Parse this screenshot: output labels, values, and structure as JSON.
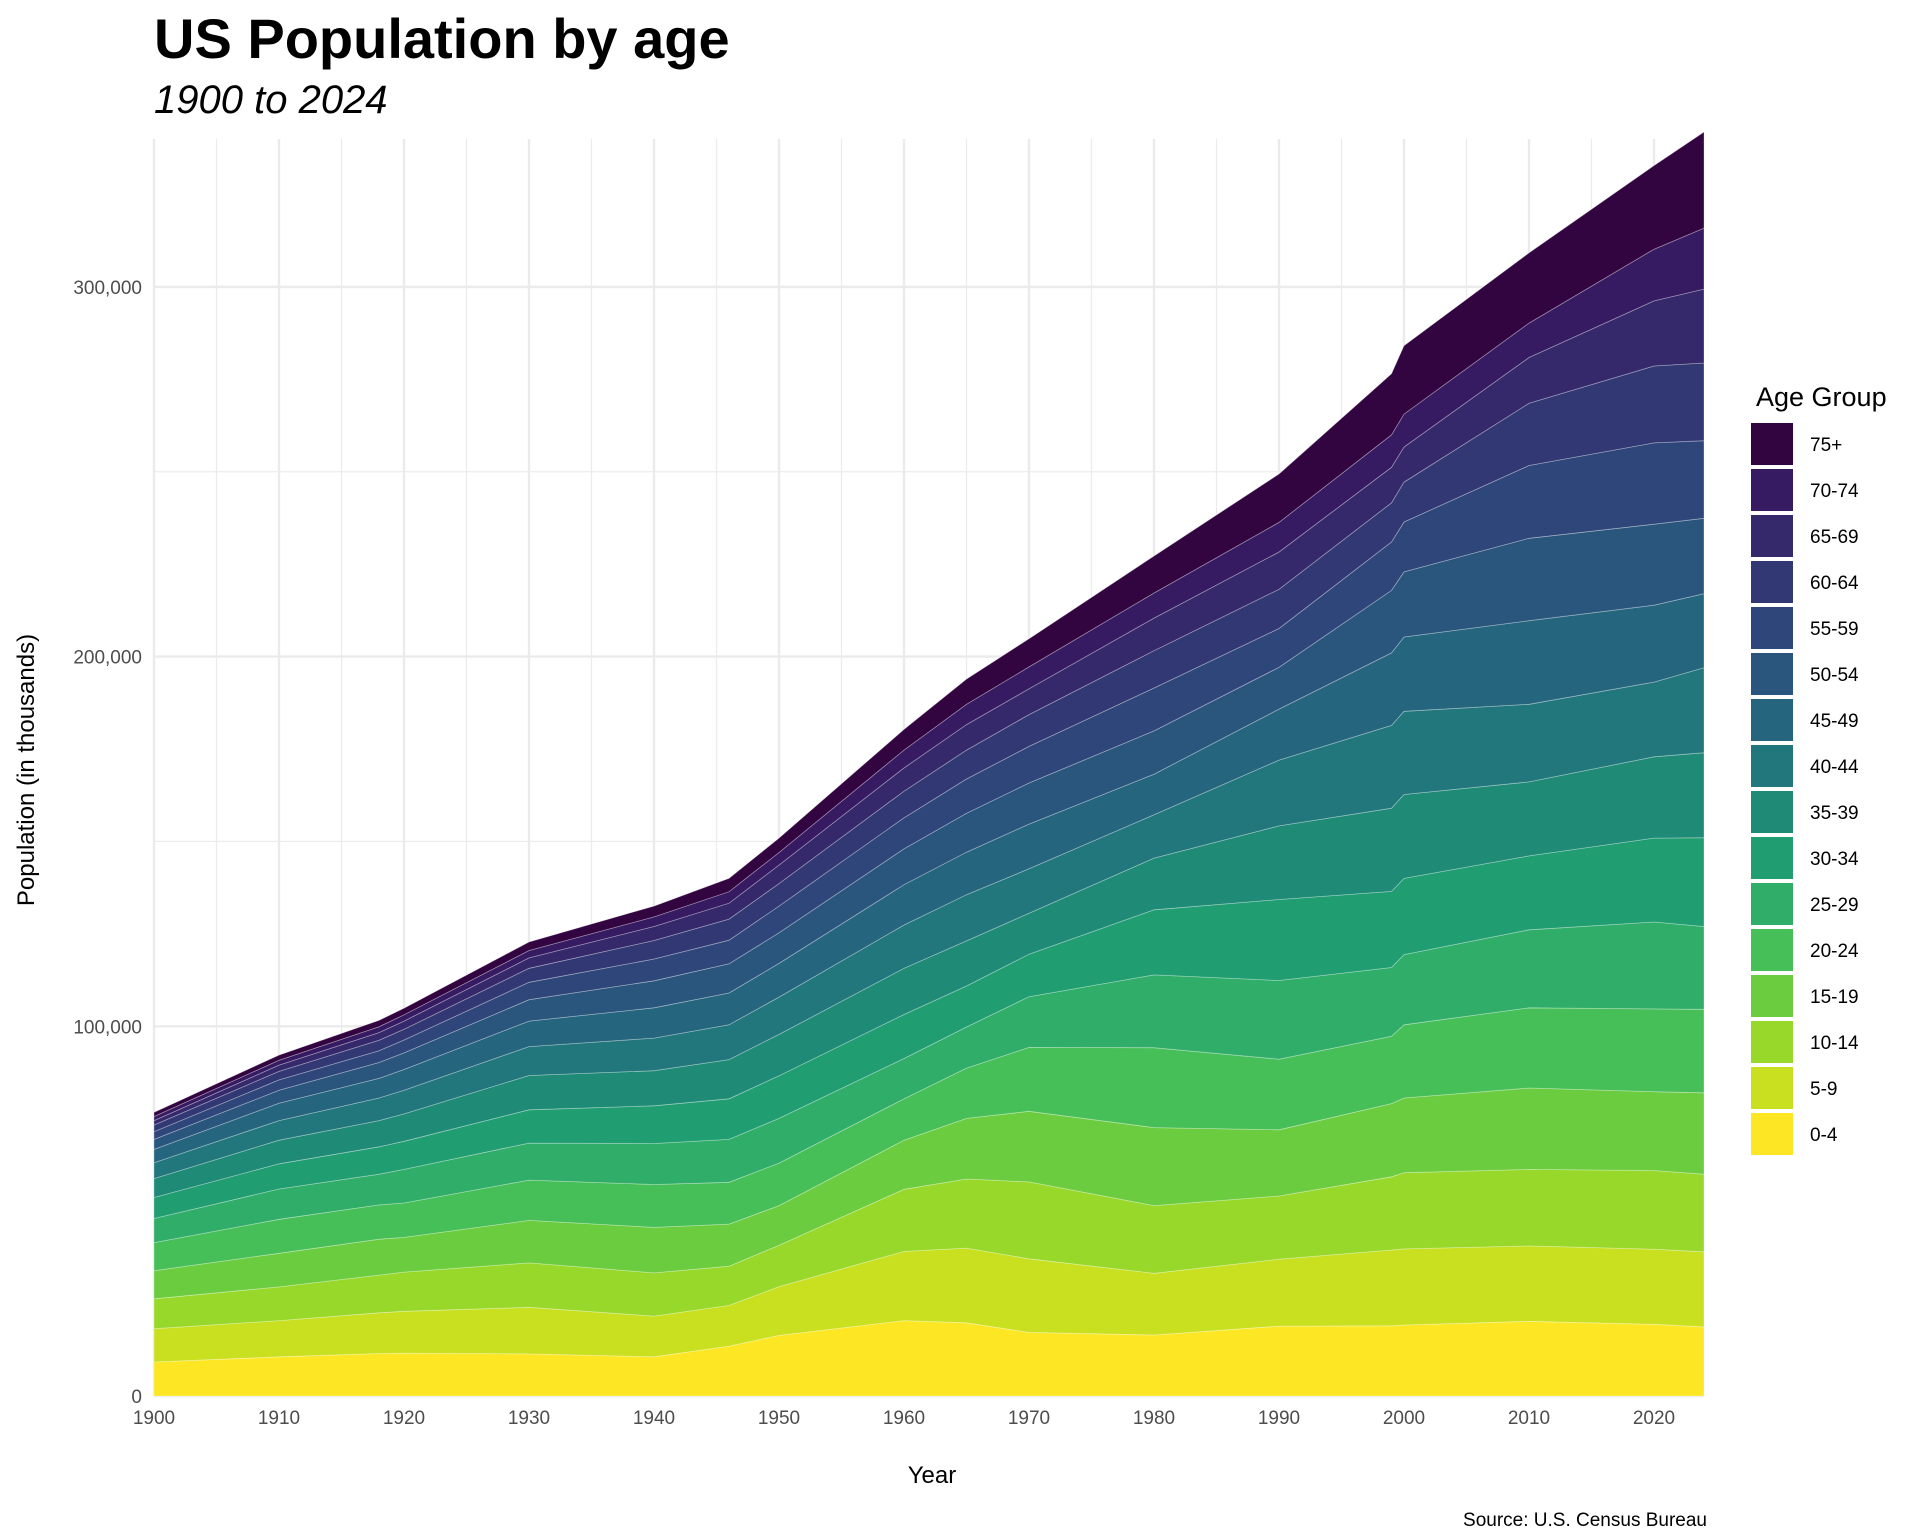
{
  "chart_data": {
    "type": "area",
    "stacked": true,
    "title": "US Population by age",
    "subtitle": "1900 to 2024",
    "xlabel": "Year",
    "ylabel": "Population (in thousands)",
    "caption": "Source: U.S. Census Bureau",
    "xlim": [
      1900,
      2024
    ],
    "ylim": [
      0,
      340000
    ],
    "x_ticks": [
      1900,
      1910,
      1920,
      1930,
      1940,
      1950,
      1960,
      1970,
      1980,
      1990,
      2000,
      2010,
      2020
    ],
    "y_ticks": [
      0,
      100000,
      200000,
      300000
    ],
    "y_tick_labels": [
      "0",
      "100,000",
      "200,000",
      "300,000"
    ],
    "grid": true,
    "legend": {
      "title": "Age Group",
      "placement": "right"
    },
    "x": [
      1900,
      1910,
      1918,
      1920,
      1930,
      1940,
      1946,
      1950,
      1960,
      1965,
      1970,
      1980,
      1990,
      1999,
      2000,
      2010,
      2020,
      2024
    ],
    "series": [
      {
        "name": "0-4",
        "color": "#FDE725",
        "values": [
          9200,
          10600,
          11500,
          11600,
          11400,
          10600,
          13500,
          16400,
          20400,
          19800,
          17200,
          16500,
          18900,
          19000,
          19200,
          20200,
          19400,
          18700
        ]
      },
      {
        "name": "5-9",
        "color": "#C8E020",
        "values": [
          9000,
          9800,
          11000,
          11300,
          12600,
          11000,
          11000,
          13200,
          18700,
          20200,
          19900,
          16700,
          18100,
          20500,
          20600,
          20400,
          20300,
          20300
        ]
      },
      {
        "name": "10-14",
        "color": "#97D82A",
        "values": [
          8100,
          9100,
          10200,
          10600,
          12000,
          11700,
          10600,
          11200,
          16800,
          18700,
          20800,
          18300,
          17100,
          19800,
          20600,
          20700,
          21300,
          21000
        ]
      },
      {
        "name": "15-19",
        "color": "#6BCC3F",
        "values": [
          7600,
          9100,
          9700,
          9400,
          11500,
          12300,
          11400,
          10700,
          13300,
          16400,
          19100,
          21100,
          17900,
          19800,
          20200,
          22000,
          21300,
          22000
        ]
      },
      {
        "name": "20-24",
        "color": "#47BF58",
        "values": [
          7600,
          9200,
          9300,
          9300,
          10900,
          11600,
          11300,
          11500,
          11200,
          13600,
          17300,
          21600,
          19100,
          18200,
          19800,
          21700,
          22400,
          22600
        ]
      },
      {
        "name": "25-29",
        "color": "#2FAD69",
        "values": [
          6500,
          8200,
          8300,
          9100,
          10000,
          11100,
          11600,
          12100,
          10900,
          11100,
          13700,
          19700,
          21300,
          18600,
          19000,
          21100,
          23500,
          22400
        ]
      },
      {
        "name": "30-34",
        "color": "#219D72",
        "values": [
          5700,
          6800,
          7400,
          7600,
          9000,
          10200,
          11000,
          11500,
          11900,
          11100,
          11500,
          17600,
          21900,
          20600,
          20600,
          20000,
          22700,
          24000
        ]
      },
      {
        "name": "35-39",
        "color": "#1F8A76",
        "values": [
          5100,
          6400,
          7100,
          7400,
          9300,
          9500,
          10600,
          11200,
          12500,
          12200,
          11100,
          14000,
          19900,
          22500,
          22700,
          20000,
          22000,
          23000
        ]
      },
      {
        "name": "40-44",
        "color": "#22777C",
        "values": [
          4300,
          5300,
          6100,
          6400,
          7800,
          8800,
          9400,
          10100,
          11700,
          12500,
          12000,
          11700,
          17800,
          22400,
          22500,
          21000,
          20200,
          23000
        ]
      },
      {
        "name": "45-49",
        "color": "#26657E",
        "values": [
          3600,
          4700,
          5300,
          5600,
          6900,
          8200,
          8600,
          9100,
          10900,
          11500,
          12100,
          11000,
          13800,
          19600,
          20100,
          22600,
          20800,
          20000
        ]
      },
      {
        "name": "50-54",
        "color": "#2A567E",
        "values": [
          2700,
          3500,
          4300,
          4500,
          5800,
          7300,
          7900,
          8300,
          9700,
          10500,
          11100,
          11700,
          11300,
          16900,
          17600,
          22300,
          21900,
          20400
        ]
      },
      {
        "name": "55-59",
        "color": "#2E4679",
        "values": [
          2100,
          2800,
          3200,
          3500,
          4700,
          5900,
          6400,
          7200,
          8400,
          9300,
          9900,
          11600,
          10500,
          13100,
          13500,
          19700,
          22000,
          21000
        ]
      },
      {
        "name": "60-64",
        "color": "#323873",
        "values": [
          1800,
          2300,
          2800,
          2900,
          3800,
          5000,
          5700,
          6100,
          7200,
          7800,
          8600,
          10100,
          10600,
          10600,
          10800,
          16800,
          20800,
          21000
        ]
      },
      {
        "name": "65-69",
        "color": "#35296C",
        "values": [
          1200,
          1700,
          2100,
          2200,
          2800,
          3800,
          4300,
          5000,
          6300,
          6900,
          7000,
          8800,
          10100,
          9600,
          9500,
          12400,
          17600,
          20000
        ]
      },
      {
        "name": "70-74",
        "color": "#371B62",
        "values": [
          1100,
          1300,
          1600,
          1700,
          2000,
          2600,
          3100,
          3400,
          4800,
          5500,
          5900,
          6800,
          8000,
          8800,
          8900,
          9300,
          14000,
          16500
        ]
      },
      {
        "name": "75+",
        "color": "#320440",
        "values": [
          1100,
          1400,
          1700,
          1800,
          2300,
          2900,
          3600,
          3900,
          5600,
          6800,
          7600,
          10000,
          13100,
          16500,
          18500,
          19000,
          22600,
          26000
        ]
      }
    ]
  }
}
